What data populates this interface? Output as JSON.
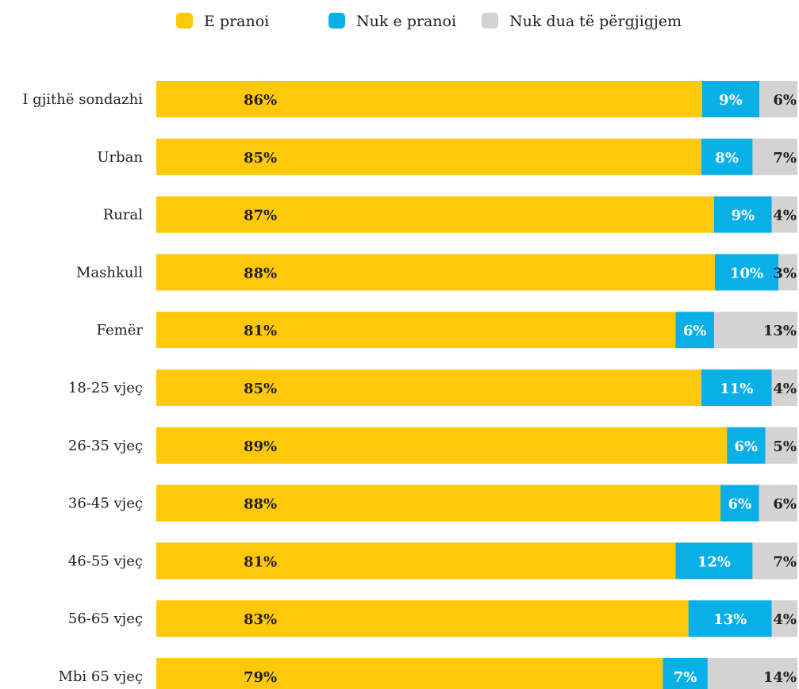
{
  "chart_data": {
    "type": "bar",
    "orientation": "horizontal",
    "stacked": true,
    "normalized_percent": true,
    "title": "",
    "xlabel": "",
    "ylabel": "",
    "legend_position": "top",
    "grid": false,
    "categories": [
      "I gjithë sondazhi",
      "Urban",
      "Rural",
      "Mashkull",
      "Femër",
      "18-25 vjeç",
      "26-35 vjeç",
      "36-45 vjeç",
      "46-55 vjeç",
      "56-65 vjeç",
      "Mbi 65 vjeç"
    ],
    "series": [
      {
        "name": "E pranoi",
        "color": "#FFC80A",
        "text_color": "#222222",
        "values": [
          86,
          85,
          87,
          88,
          81,
          85,
          89,
          88,
          81,
          83,
          79
        ],
        "labels": [
          "86%",
          "85%",
          "87%",
          "88%",
          "81%",
          "85%",
          "89%",
          "88%",
          "81%",
          "83%",
          "79%"
        ]
      },
      {
        "name": "Nuk e pranoi",
        "color": "#0BAFE8",
        "text_color": "#ffffff",
        "values": [
          9,
          8,
          9,
          10,
          6,
          11,
          6,
          6,
          12,
          13,
          7
        ],
        "labels": [
          "9%",
          "8%",
          "9%",
          "10%",
          "6%",
          "11%",
          "6%",
          "6%",
          "12%",
          "13%",
          "7%"
        ]
      },
      {
        "name": "Nuk dua të përgjigjem",
        "color": "#D3D3D3",
        "text_color": "#222222",
        "values": [
          6,
          7,
          4,
          3,
          13,
          4,
          5,
          6,
          7,
          4,
          14
        ],
        "labels": [
          "6%",
          "7%",
          "4%",
          "3%",
          "13%",
          "4%",
          "5%",
          "6%",
          "7%",
          "4%",
          "14%"
        ]
      }
    ]
  }
}
